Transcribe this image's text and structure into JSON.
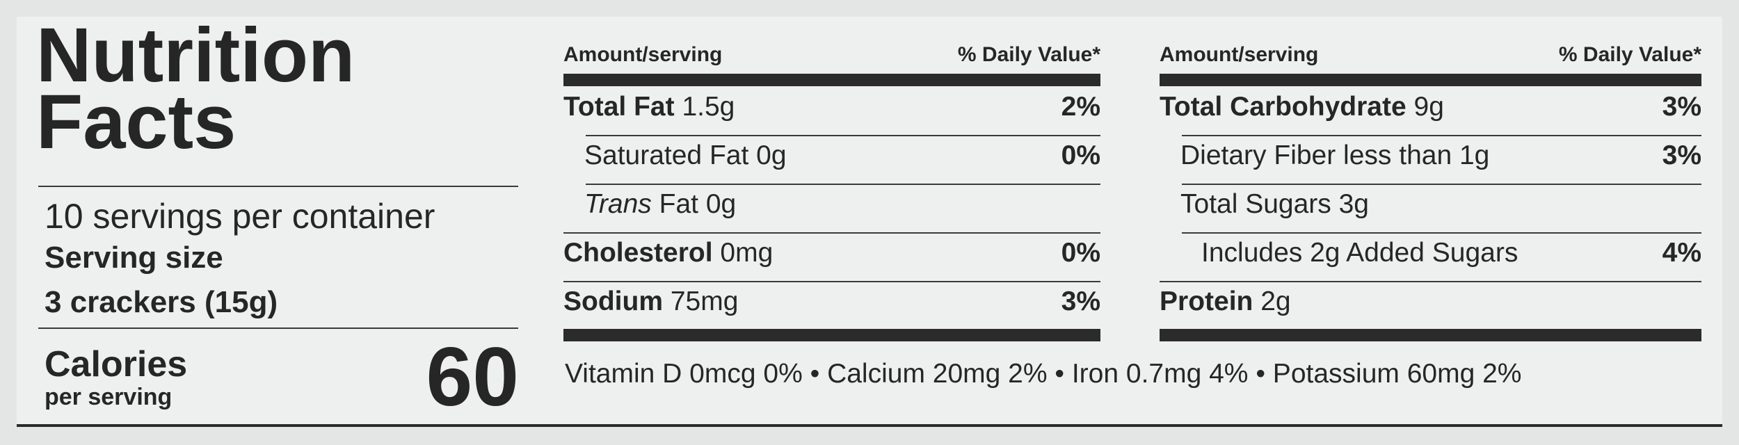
{
  "title": "Nutrition Facts",
  "servings": "10 servings per container",
  "serving_size": {
    "label": "Serving size",
    "value": "3 crackers (15g)"
  },
  "calories": {
    "label": "Calories",
    "sub": "per serving",
    "value": 60
  },
  "columns": [
    {
      "header": {
        "amount": "Amount/serving",
        "dv": "% Daily Value*"
      },
      "rows": [
        {
          "label": "Total Fat",
          "amount": "1.5g",
          "dv": "2%",
          "bold": true,
          "indent": 0
        },
        {
          "label": "Saturated Fat",
          "amount": "0g",
          "dv": "0%",
          "bold": false,
          "indent": 1
        },
        {
          "label": "Trans",
          "amount": "Fat 0g",
          "bold": false,
          "italic": true,
          "indent": 1
        },
        {
          "label": "Cholesterol",
          "amount": "0mg",
          "dv": "0%",
          "bold": true,
          "indent": 0
        },
        {
          "label": "Sodium",
          "amount": "75mg",
          "dv": "3%",
          "bold": true,
          "indent": 0
        }
      ]
    },
    {
      "header": {
        "amount": "Amount/serving",
        "dv": "% Daily Value*"
      },
      "rows": [
        {
          "label": "Total Carbohydrate",
          "amount": "9g",
          "dv": "3%",
          "bold": true,
          "indent": 0
        },
        {
          "label": "Dietary Fiber less than 1g",
          "dv": "3%",
          "bold": false,
          "indent": 1
        },
        {
          "label": "Total Sugars 3g",
          "bold": false,
          "indent": 1
        },
        {
          "label": "Includes 2g Added Sugars",
          "dv": "4%",
          "bold": false,
          "indent": 2
        },
        {
          "label": "Protein",
          "amount": "2g",
          "bold": true,
          "indent": 0
        }
      ]
    }
  ],
  "footer": "Vitamin D 0mcg 0% • Calcium 20mg 2% • Iron 0.7mg 4% • Potassium 60mg 2%"
}
